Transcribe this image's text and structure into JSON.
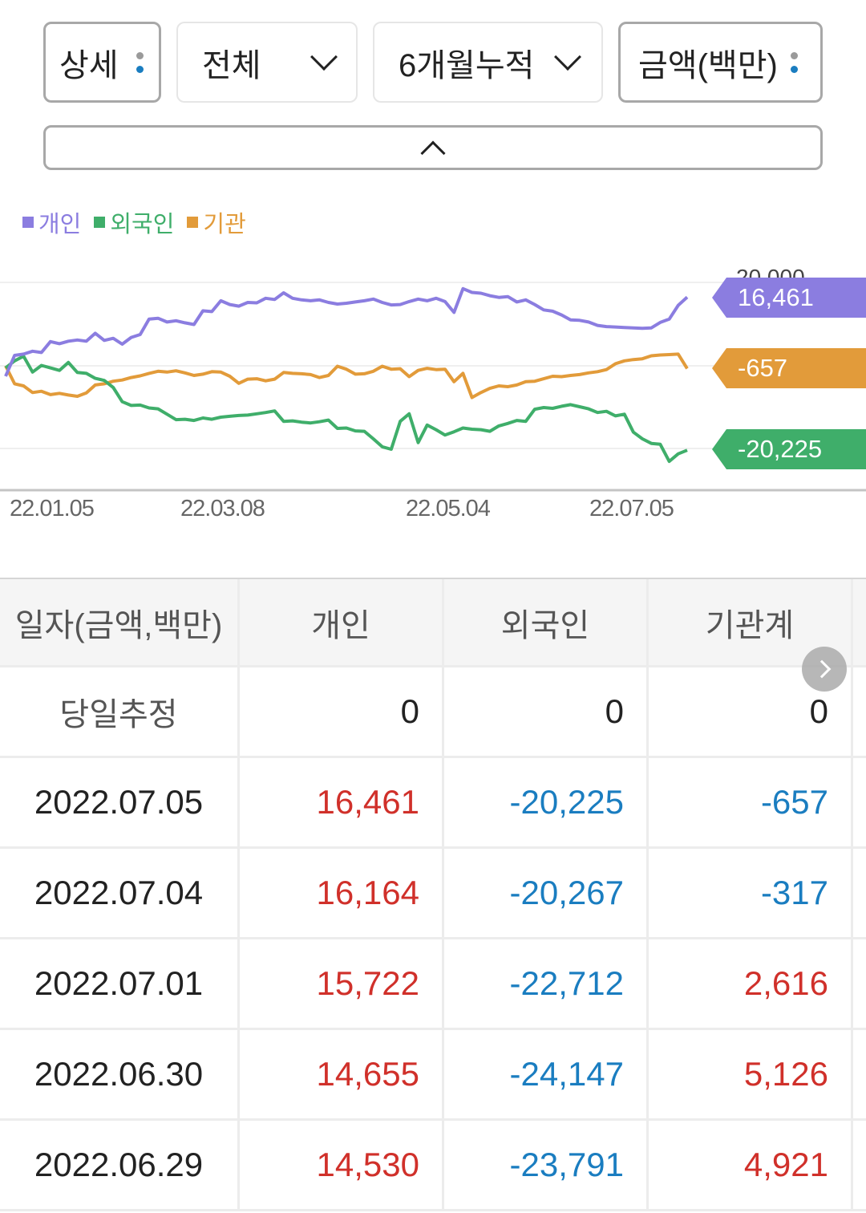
{
  "controls": {
    "detail_label": "상세",
    "scope_label": "전체",
    "period_label": "6개월누적",
    "unit_label": "금액(백만)",
    "dot_colors": [
      "#9a9a9a",
      "#1a7dc0"
    ]
  },
  "colors": {
    "individual": "#8b7de0",
    "foreign": "#3fae6a",
    "institution": "#e29b3a",
    "positive": "#d0302a",
    "negative": "#1a7dc0"
  },
  "legend": [
    {
      "label": "개인",
      "color": "#8b7de0"
    },
    {
      "label": "외국인",
      "color": "#3fae6a"
    },
    {
      "label": "기관",
      "color": "#e29b3a"
    }
  ],
  "tags": {
    "individual": "16,461",
    "institution": "-657",
    "foreign": "-20,225",
    "hidden_axis_label": "20,000"
  },
  "chart_data": {
    "type": "line",
    "title": "",
    "xlabel": "",
    "ylabel": "금액(백만)",
    "x_tick_labels": [
      "22.01.05",
      "22.03.08",
      "22.05.04",
      "22.07.05"
    ],
    "y_gridlines": [
      20000,
      0,
      -20000
    ],
    "ylim": [
      -27000,
      27000
    ],
    "legend_position": "top-left",
    "series": [
      {
        "name": "개인",
        "color": "#8b7de0",
        "values": [
          -2500,
          2500,
          2800,
          3500,
          3200,
          5800,
          5300,
          5900,
          6200,
          5900,
          7800,
          6100,
          6600,
          5200,
          6800,
          7500,
          11200,
          11400,
          10500,
          10800,
          10300,
          9900,
          13200,
          13000,
          15600,
          14700,
          14300,
          15200,
          15100,
          16200,
          15900,
          17500,
          16200,
          15800,
          15600,
          15800,
          15200,
          14800,
          15000,
          15300,
          15600,
          16000,
          15200,
          14600,
          14700,
          15400,
          16000,
          15600,
          16200,
          15400,
          12800,
          18500,
          17600,
          17400,
          16800,
          16400,
          16600,
          15300,
          15800,
          14700,
          13400,
          13100,
          12200,
          11000,
          10900,
          10500,
          9700,
          9400,
          9300,
          9200,
          9100,
          9000,
          9100,
          10400,
          11200,
          14500,
          16461
        ]
      },
      {
        "name": "외국인",
        "color": "#3fae6a",
        "values": [
          -500,
          1200,
          2300,
          -1500,
          100,
          -500,
          -1100,
          800,
          -1600,
          -1800,
          -3000,
          -3500,
          -5200,
          -8600,
          -9500,
          -9400,
          -10100,
          -10300,
          -11600,
          -12900,
          -12800,
          -13100,
          -12500,
          -12800,
          -12300,
          -12100,
          -11900,
          -11800,
          -11500,
          -11200,
          -10800,
          -13300,
          -13200,
          -13500,
          -13700,
          -13400,
          -13000,
          -15000,
          -14900,
          -15600,
          -15700,
          -17500,
          -19400,
          -20000,
          -13300,
          -11500,
          -18400,
          -14200,
          -15300,
          -16600,
          -15800,
          -14900,
          -15200,
          -15300,
          -15700,
          -14400,
          -13800,
          -13100,
          -13300,
          -10400,
          -10000,
          -10200,
          -9700,
          -9300,
          -9800,
          -10300,
          -11200,
          -10900,
          -12000,
          -11600,
          -15900,
          -17500,
          -18600,
          -18800,
          -22900,
          -21100,
          -20225
        ]
      },
      {
        "name": "기관",
        "color": "#e29b3a",
        "values": [
          0,
          -4300,
          -4800,
          -6400,
          -6100,
          -6900,
          -6600,
          -7000,
          -7300,
          -6500,
          -4600,
          -4300,
          -3700,
          -3400,
          -2800,
          -2400,
          -1800,
          -1300,
          -1500,
          -1200,
          -1700,
          -2300,
          -2000,
          -1400,
          -1500,
          -2500,
          -4200,
          -3200,
          -3100,
          -3600,
          -3200,
          -1600,
          -1800,
          -1900,
          -2100,
          -2800,
          -2300,
          -100,
          -800,
          -2000,
          -1900,
          -1300,
          -100,
          -800,
          -700,
          -2600,
          -1100,
          -600,
          -900,
          -800,
          -3800,
          -1800,
          -7600,
          -6400,
          -5400,
          -4800,
          -5000,
          -4600,
          -3800,
          -3700,
          -3100,
          -2500,
          -2600,
          -2300,
          -2100,
          -1700,
          -1400,
          -900,
          500,
          1200,
          1500,
          1700,
          2400,
          2600,
          2700,
          2800,
          -657
        ]
      }
    ]
  },
  "x_axis_labels": [
    "22.01.05",
    "22.03.08",
    "22.05.04",
    "22.07.05"
  ],
  "table": {
    "headers": [
      "일자(금액,백만)",
      "개인",
      "외국인",
      "기관계"
    ],
    "estimate_row": {
      "label": "당일추정",
      "individual": "0",
      "foreign": "0",
      "institution": "0"
    },
    "rows": [
      {
        "date": "2022.07.05",
        "individual": "16,461",
        "foreign": "-20,225",
        "institution": "-657"
      },
      {
        "date": "2022.07.04",
        "individual": "16,164",
        "foreign": "-20,267",
        "institution": "-317"
      },
      {
        "date": "2022.07.01",
        "individual": "15,722",
        "foreign": "-22,712",
        "institution": "2,616"
      },
      {
        "date": "2022.06.30",
        "individual": "14,655",
        "foreign": "-24,147",
        "institution": "5,126"
      },
      {
        "date": "2022.06.29",
        "individual": "14,530",
        "foreign": "-23,791",
        "institution": "4,921"
      }
    ]
  }
}
